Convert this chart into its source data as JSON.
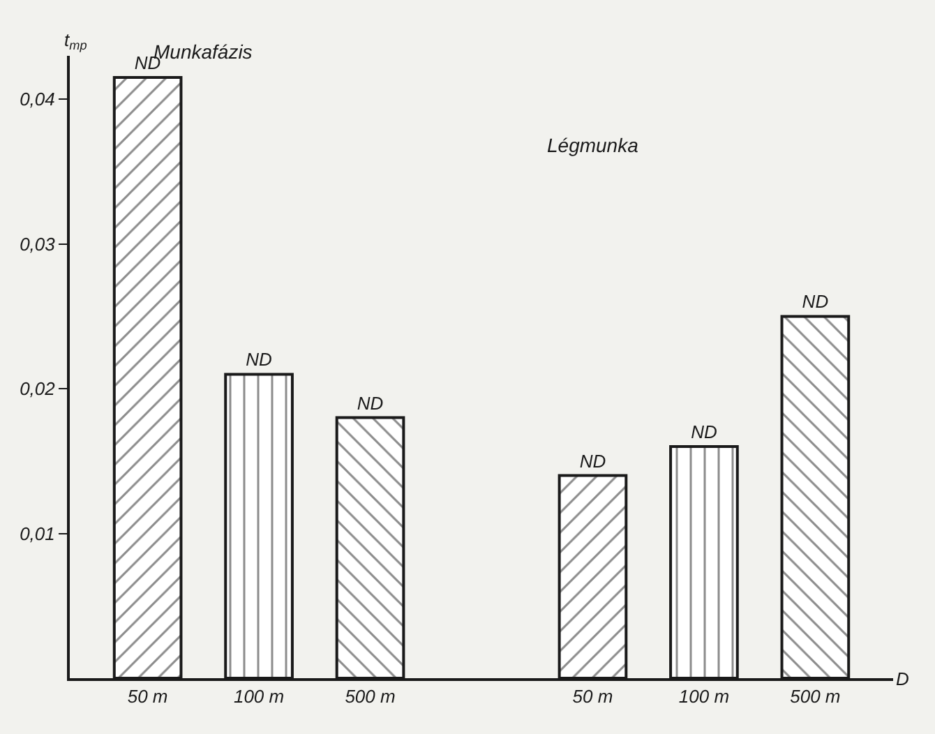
{
  "chart_data": {
    "type": "bar",
    "categories": [
      "50 m",
      "100 m",
      "500 m",
      null,
      "50 m",
      "100 m",
      "500 m"
    ],
    "values": [
      0.0415,
      0.021,
      0.018,
      null,
      0.014,
      0.016,
      0.025
    ],
    "value_labels": [
      "ND",
      "ND",
      "ND",
      null,
      "ND",
      "ND",
      "ND"
    ],
    "color": "#1a1a1a",
    "ylim": [
      0,
      0.043
    ],
    "yticks": [
      {
        "value": 0.01,
        "label": "0,01"
      },
      {
        "value": 0.02,
        "label": "0,02"
      },
      {
        "value": 0.03,
        "label": "0,03"
      },
      {
        "value": 0.04,
        "label": "0,04"
      }
    ],
    "ylabel": "t$_{mp}$",
    "xlabel": "D",
    "annotations": [
      "Munkafázis",
      "Légmunka"
    ],
    "grid": false,
    "legend": false
  }
}
